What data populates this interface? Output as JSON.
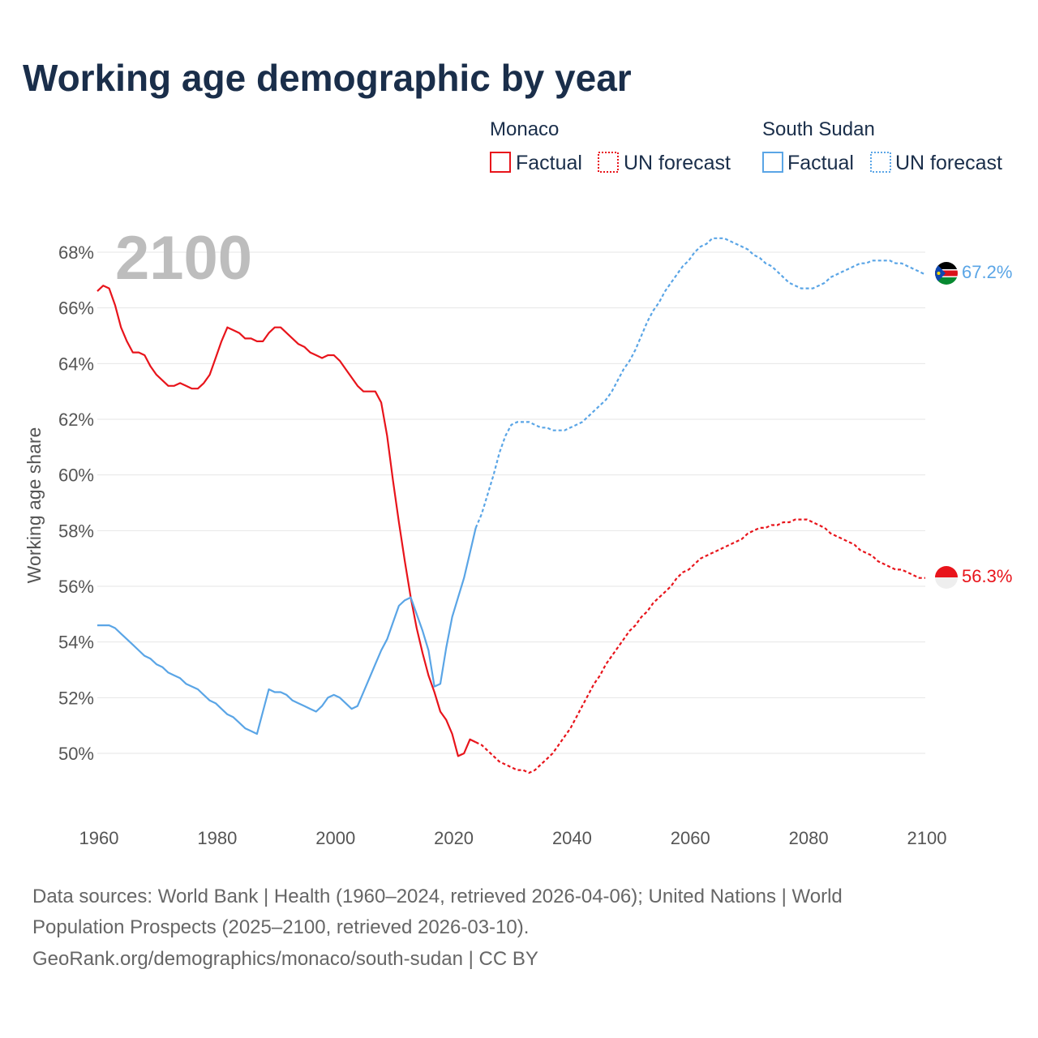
{
  "title": "Working age demographic by year",
  "year_display": "2100",
  "legend": {
    "groups": [
      {
        "name": "Monaco",
        "factual_label": "Factual",
        "forecast_label": "UN forecast",
        "color": "#e8141b"
      },
      {
        "name": "South Sudan",
        "factual_label": "Factual",
        "forecast_label": "UN forecast",
        "color": "#5aa5e6"
      }
    ]
  },
  "footer": {
    "line1": "Data sources: World Bank | Health (1960–2024, retrieved 2026-04-06); United Nations | World",
    "line2": "Population Prospects (2025–2100, retrieved 2026-03-10).",
    "line3": "GeoRank.org/demographics/monaco/south-sudan | CC BY"
  },
  "chart_data": {
    "type": "line",
    "title": "Working age demographic by year",
    "xlabel": "",
    "ylabel": "Working age share",
    "xlim": [
      1960,
      2100
    ],
    "ylim": [
      47.5,
      69.5
    ],
    "x_ticks": [
      1960,
      1980,
      2000,
      2020,
      2040,
      2060,
      2080,
      2100
    ],
    "x_tick_labels": [
      "1960",
      "1980",
      "2000",
      "2020",
      "2040",
      "2060",
      "2080",
      "2100"
    ],
    "y_ticks": [
      50,
      52,
      54,
      56,
      58,
      60,
      62,
      64,
      66,
      68
    ],
    "y_tick_labels": [
      "50%",
      "52%",
      "54%",
      "56%",
      "58%",
      "60%",
      "62%",
      "64%",
      "66%",
      "68%"
    ],
    "grid": true,
    "forecast_start_year": 2024,
    "series": [
      {
        "name": "Monaco",
        "color": "#e8141b",
        "end_label": "56.3%",
        "points": [
          [
            1960,
            66.6
          ],
          [
            1961,
            66.8
          ],
          [
            1962,
            66.7
          ],
          [
            1963,
            66.1
          ],
          [
            1964,
            65.3
          ],
          [
            1965,
            64.8
          ],
          [
            1966,
            64.4
          ],
          [
            1967,
            64.4
          ],
          [
            1968,
            64.3
          ],
          [
            1969,
            63.9
          ],
          [
            1970,
            63.6
          ],
          [
            1971,
            63.4
          ],
          [
            1972,
            63.2
          ],
          [
            1973,
            63.2
          ],
          [
            1974,
            63.3
          ],
          [
            1975,
            63.2
          ],
          [
            1976,
            63.1
          ],
          [
            1977,
            63.1
          ],
          [
            1978,
            63.3
          ],
          [
            1979,
            63.6
          ],
          [
            1980,
            64.2
          ],
          [
            1981,
            64.8
          ],
          [
            1982,
            65.3
          ],
          [
            1983,
            65.2
          ],
          [
            1984,
            65.1
          ],
          [
            1985,
            64.9
          ],
          [
            1986,
            64.9
          ],
          [
            1987,
            64.8
          ],
          [
            1988,
            64.8
          ],
          [
            1989,
            65.1
          ],
          [
            1990,
            65.3
          ],
          [
            1991,
            65.3
          ],
          [
            1992,
            65.1
          ],
          [
            1993,
            64.9
          ],
          [
            1994,
            64.7
          ],
          [
            1995,
            64.6
          ],
          [
            1996,
            64.4
          ],
          [
            1997,
            64.3
          ],
          [
            1998,
            64.2
          ],
          [
            1999,
            64.3
          ],
          [
            2000,
            64.3
          ],
          [
            2001,
            64.1
          ],
          [
            2002,
            63.8
          ],
          [
            2003,
            63.5
          ],
          [
            2004,
            63.2
          ],
          [
            2005,
            63.0
          ],
          [
            2006,
            63.0
          ],
          [
            2007,
            63.0
          ],
          [
            2008,
            62.6
          ],
          [
            2009,
            61.4
          ],
          [
            2010,
            59.8
          ],
          [
            2011,
            58.3
          ],
          [
            2012,
            56.9
          ],
          [
            2013,
            55.6
          ],
          [
            2014,
            54.5
          ],
          [
            2015,
            53.6
          ],
          [
            2016,
            52.8
          ],
          [
            2017,
            52.2
          ],
          [
            2018,
            51.5
          ],
          [
            2019,
            51.2
          ],
          [
            2020,
            50.7
          ],
          [
            2021,
            49.9
          ],
          [
            2022,
            50.0
          ],
          [
            2023,
            50.5
          ],
          [
            2024,
            50.4
          ],
          [
            2025,
            50.3
          ],
          [
            2026,
            50.1
          ],
          [
            2027,
            49.9
          ],
          [
            2028,
            49.7
          ],
          [
            2029,
            49.6
          ],
          [
            2030,
            49.5
          ],
          [
            2031,
            49.4
          ],
          [
            2032,
            49.4
          ],
          [
            2033,
            49.3
          ],
          [
            2034,
            49.4
          ],
          [
            2035,
            49.6
          ],
          [
            2036,
            49.8
          ],
          [
            2037,
            50.0
          ],
          [
            2038,
            50.3
          ],
          [
            2039,
            50.6
          ],
          [
            2040,
            50.9
          ],
          [
            2041,
            51.3
          ],
          [
            2042,
            51.7
          ],
          [
            2043,
            52.1
          ],
          [
            2044,
            52.5
          ],
          [
            2045,
            52.8
          ],
          [
            2046,
            53.2
          ],
          [
            2047,
            53.5
          ],
          [
            2048,
            53.8
          ],
          [
            2049,
            54.1
          ],
          [
            2050,
            54.4
          ],
          [
            2051,
            54.6
          ],
          [
            2052,
            54.9
          ],
          [
            2053,
            55.1
          ],
          [
            2054,
            55.4
          ],
          [
            2055,
            55.6
          ],
          [
            2056,
            55.8
          ],
          [
            2057,
            56.0
          ],
          [
            2058,
            56.3
          ],
          [
            2059,
            56.5
          ],
          [
            2060,
            56.6
          ],
          [
            2061,
            56.8
          ],
          [
            2062,
            57.0
          ],
          [
            2063,
            57.1
          ],
          [
            2064,
            57.2
          ],
          [
            2065,
            57.3
          ],
          [
            2066,
            57.4
          ],
          [
            2067,
            57.5
          ],
          [
            2068,
            57.6
          ],
          [
            2069,
            57.7
          ],
          [
            2070,
            57.9
          ],
          [
            2071,
            58.0
          ],
          [
            2072,
            58.1
          ],
          [
            2073,
            58.1
          ],
          [
            2074,
            58.2
          ],
          [
            2075,
            58.2
          ],
          [
            2076,
            58.3
          ],
          [
            2077,
            58.3
          ],
          [
            2078,
            58.4
          ],
          [
            2079,
            58.4
          ],
          [
            2080,
            58.4
          ],
          [
            2081,
            58.3
          ],
          [
            2082,
            58.2
          ],
          [
            2083,
            58.1
          ],
          [
            2084,
            57.9
          ],
          [
            2085,
            57.8
          ],
          [
            2086,
            57.7
          ],
          [
            2087,
            57.6
          ],
          [
            2088,
            57.5
          ],
          [
            2089,
            57.3
          ],
          [
            2090,
            57.2
          ],
          [
            2091,
            57.1
          ],
          [
            2092,
            56.9
          ],
          [
            2093,
            56.8
          ],
          [
            2094,
            56.7
          ],
          [
            2095,
            56.6
          ],
          [
            2096,
            56.6
          ],
          [
            2097,
            56.5
          ],
          [
            2098,
            56.4
          ],
          [
            2099,
            56.3
          ],
          [
            2100,
            56.3
          ]
        ]
      },
      {
        "name": "South Sudan",
        "color": "#5aa5e6",
        "end_label": "67.2%",
        "points": [
          [
            1960,
            54.6
          ],
          [
            1961,
            54.6
          ],
          [
            1962,
            54.6
          ],
          [
            1963,
            54.5
          ],
          [
            1964,
            54.3
          ],
          [
            1965,
            54.1
          ],
          [
            1966,
            53.9
          ],
          [
            1967,
            53.7
          ],
          [
            1968,
            53.5
          ],
          [
            1969,
            53.4
          ],
          [
            1970,
            53.2
          ],
          [
            1971,
            53.1
          ],
          [
            1972,
            52.9
          ],
          [
            1973,
            52.8
          ],
          [
            1974,
            52.7
          ],
          [
            1975,
            52.5
          ],
          [
            1976,
            52.4
          ],
          [
            1977,
            52.3
          ],
          [
            1978,
            52.1
          ],
          [
            1979,
            51.9
          ],
          [
            1980,
            51.8
          ],
          [
            1981,
            51.6
          ],
          [
            1982,
            51.4
          ],
          [
            1983,
            51.3
          ],
          [
            1984,
            51.1
          ],
          [
            1985,
            50.9
          ],
          [
            1986,
            50.8
          ],
          [
            1987,
            50.7
          ],
          [
            1988,
            51.5
          ],
          [
            1989,
            52.3
          ],
          [
            1990,
            52.2
          ],
          [
            1991,
            52.2
          ],
          [
            1992,
            52.1
          ],
          [
            1993,
            51.9
          ],
          [
            1994,
            51.8
          ],
          [
            1995,
            51.7
          ],
          [
            1996,
            51.6
          ],
          [
            1997,
            51.5
          ],
          [
            1998,
            51.7
          ],
          [
            1999,
            52.0
          ],
          [
            2000,
            52.1
          ],
          [
            2001,
            52.0
          ],
          [
            2002,
            51.8
          ],
          [
            2003,
            51.6
          ],
          [
            2004,
            51.7
          ],
          [
            2005,
            52.2
          ],
          [
            2006,
            52.7
          ],
          [
            2007,
            53.2
          ],
          [
            2008,
            53.7
          ],
          [
            2009,
            54.1
          ],
          [
            2010,
            54.7
          ],
          [
            2011,
            55.3
          ],
          [
            2012,
            55.5
          ],
          [
            2013,
            55.6
          ],
          [
            2014,
            55.0
          ],
          [
            2015,
            54.4
          ],
          [
            2016,
            53.7
          ],
          [
            2017,
            52.4
          ],
          [
            2018,
            52.5
          ],
          [
            2019,
            53.8
          ],
          [
            2020,
            54.9
          ],
          [
            2021,
            55.6
          ],
          [
            2022,
            56.3
          ],
          [
            2023,
            57.2
          ],
          [
            2024,
            58.1
          ],
          [
            2025,
            58.6
          ],
          [
            2026,
            59.3
          ],
          [
            2027,
            60.0
          ],
          [
            2028,
            60.8
          ],
          [
            2029,
            61.4
          ],
          [
            2030,
            61.8
          ],
          [
            2031,
            61.9
          ],
          [
            2032,
            61.9
          ],
          [
            2033,
            61.9
          ],
          [
            2034,
            61.8
          ],
          [
            2035,
            61.7
          ],
          [
            2036,
            61.7
          ],
          [
            2037,
            61.6
          ],
          [
            2038,
            61.6
          ],
          [
            2039,
            61.6
          ],
          [
            2040,
            61.7
          ],
          [
            2041,
            61.8
          ],
          [
            2042,
            61.9
          ],
          [
            2043,
            62.1
          ],
          [
            2044,
            62.3
          ],
          [
            2045,
            62.5
          ],
          [
            2046,
            62.7
          ],
          [
            2047,
            63.0
          ],
          [
            2048,
            63.4
          ],
          [
            2049,
            63.8
          ],
          [
            2050,
            64.1
          ],
          [
            2051,
            64.5
          ],
          [
            2052,
            65.0
          ],
          [
            2053,
            65.5
          ],
          [
            2054,
            65.9
          ],
          [
            2055,
            66.2
          ],
          [
            2056,
            66.6
          ],
          [
            2057,
            66.9
          ],
          [
            2058,
            67.2
          ],
          [
            2059,
            67.5
          ],
          [
            2060,
            67.7
          ],
          [
            2061,
            68.0
          ],
          [
            2062,
            68.2
          ],
          [
            2063,
            68.3
          ],
          [
            2064,
            68.5
          ],
          [
            2065,
            68.5
          ],
          [
            2066,
            68.5
          ],
          [
            2067,
            68.4
          ],
          [
            2068,
            68.3
          ],
          [
            2069,
            68.2
          ],
          [
            2070,
            68.1
          ],
          [
            2071,
            67.9
          ],
          [
            2072,
            67.8
          ],
          [
            2073,
            67.6
          ],
          [
            2074,
            67.5
          ],
          [
            2075,
            67.3
          ],
          [
            2076,
            67.1
          ],
          [
            2077,
            66.9
          ],
          [
            2078,
            66.8
          ],
          [
            2079,
            66.7
          ],
          [
            2080,
            66.7
          ],
          [
            2081,
            66.7
          ],
          [
            2082,
            66.8
          ],
          [
            2083,
            66.9
          ],
          [
            2084,
            67.1
          ],
          [
            2085,
            67.2
          ],
          [
            2086,
            67.3
          ],
          [
            2087,
            67.4
          ],
          [
            2088,
            67.5
          ],
          [
            2089,
            67.6
          ],
          [
            2090,
            67.6
          ],
          [
            2091,
            67.7
          ],
          [
            2092,
            67.7
          ],
          [
            2093,
            67.7
          ],
          [
            2094,
            67.7
          ],
          [
            2095,
            67.6
          ],
          [
            2096,
            67.6
          ],
          [
            2097,
            67.5
          ],
          [
            2098,
            67.4
          ],
          [
            2099,
            67.3
          ],
          [
            2100,
            67.2
          ]
        ]
      }
    ]
  }
}
